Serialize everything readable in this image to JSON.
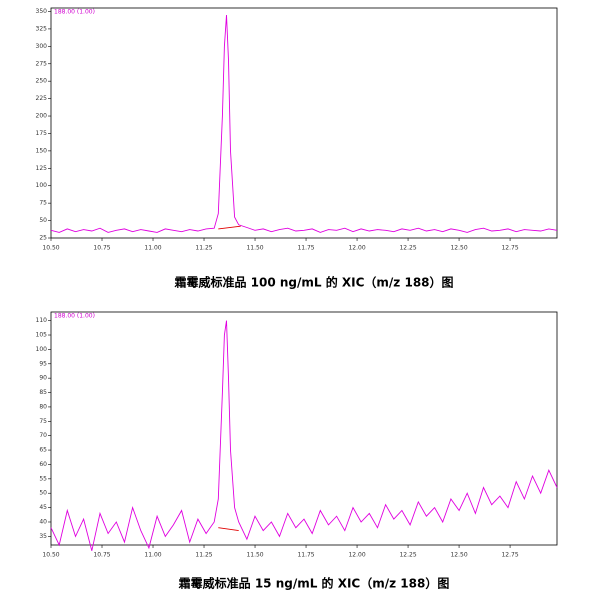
{
  "chart_data": [
    {
      "type": "line",
      "title": "霜霉威标准品 100 ng/mL 的 XIC（m/z 188）图",
      "annotation": "188.00 (1.00)",
      "xlim": [
        10.5,
        12.98
      ],
      "ylim": [
        25,
        355
      ],
      "xticks": [
        {
          "value": 10.5,
          "label": "10.50"
        },
        10.75,
        {
          "value": 11.0,
          "label": "11.00"
        },
        11.25,
        {
          "value": 11.5,
          "label": "11.50"
        },
        11.75,
        {
          "value": 12.0,
          "label": "12.00"
        },
        12.25,
        {
          "value": 12.5,
          "label": "12.50"
        },
        12.75
      ],
      "yticks": [
        25,
        50,
        75,
        100,
        125,
        150,
        175,
        200,
        225,
        250,
        275,
        300,
        325,
        350
      ],
      "series": [
        {
          "color": "#e000e0",
          "x": [
            10.5,
            10.54,
            10.58,
            10.62,
            10.66,
            10.7,
            10.74,
            10.78,
            10.82,
            10.86,
            10.9,
            10.94,
            10.98,
            11.02,
            11.06,
            11.1,
            11.14,
            11.18,
            11.22,
            11.26,
            11.3,
            11.32,
            11.34,
            11.35,
            11.36,
            11.37,
            11.38,
            11.4,
            11.42,
            11.46,
            11.5,
            11.54,
            11.58,
            11.62,
            11.66,
            11.7,
            11.74,
            11.78,
            11.82,
            11.86,
            11.9,
            11.94,
            11.98,
            12.02,
            12.06,
            12.1,
            12.14,
            12.18,
            12.22,
            12.26,
            12.3,
            12.34,
            12.38,
            12.42,
            12.46,
            12.5,
            12.54,
            12.58,
            12.62,
            12.66,
            12.7,
            12.74,
            12.78,
            12.82,
            12.86,
            12.9,
            12.94,
            12.98
          ],
          "values": [
            36,
            33,
            38,
            34,
            37,
            35,
            39,
            33,
            36,
            38,
            34,
            37,
            35,
            33,
            38,
            36,
            34,
            37,
            35,
            38,
            39,
            60,
            200,
            300,
            345,
            280,
            150,
            55,
            44,
            40,
            36,
            38,
            34,
            37,
            39,
            35,
            36,
            38,
            33,
            37,
            36,
            39,
            34,
            38,
            35,
            37,
            36,
            34,
            38,
            36,
            39,
            35,
            37,
            34,
            38,
            36,
            33,
            37,
            39,
            35,
            36,
            38,
            34,
            37,
            36,
            35,
            38,
            36
          ]
        },
        {
          "color": "#e00000",
          "x": [
            11.32,
            11.43
          ],
          "values": [
            38,
            42
          ]
        }
      ]
    },
    {
      "type": "line",
      "title": "霜霉威标准品 15 ng/mL 的 XIC（m/z 188）图",
      "annotation": "188.00 (1.00)",
      "xlim": [
        10.5,
        12.98
      ],
      "ylim": [
        32,
        113
      ],
      "xticks": [
        {
          "value": 10.5,
          "label": "10.50"
        },
        10.75,
        {
          "value": 11.0,
          "label": "11.00"
        },
        11.25,
        {
          "value": 11.5,
          "label": "11.50"
        },
        11.75,
        {
          "value": 12.0,
          "label": "12.00"
        },
        12.25,
        {
          "value": 12.5,
          "label": "12.50"
        },
        12.75
      ],
      "yticks": [
        35,
        40,
        45,
        50,
        55,
        60,
        65,
        70,
        75,
        80,
        85,
        90,
        95,
        100,
        105,
        110
      ],
      "series": [
        {
          "color": "#e000e0",
          "x": [
            10.5,
            10.54,
            10.58,
            10.62,
            10.66,
            10.7,
            10.74,
            10.78,
            10.82,
            10.86,
            10.9,
            10.94,
            10.98,
            11.02,
            11.06,
            11.1,
            11.14,
            11.18,
            11.22,
            11.26,
            11.3,
            11.32,
            11.34,
            11.35,
            11.36,
            11.37,
            11.38,
            11.4,
            11.42,
            11.46,
            11.5,
            11.54,
            11.58,
            11.62,
            11.66,
            11.7,
            11.74,
            11.78,
            11.82,
            11.86,
            11.9,
            11.94,
            11.98,
            12.02,
            12.06,
            12.1,
            12.14,
            12.18,
            12.22,
            12.26,
            12.3,
            12.34,
            12.38,
            12.42,
            12.46,
            12.5,
            12.54,
            12.58,
            12.62,
            12.66,
            12.7,
            12.74,
            12.78,
            12.82,
            12.86,
            12.9,
            12.94,
            12.98
          ],
          "values": [
            38,
            32,
            44,
            35,
            41,
            30,
            43,
            36,
            40,
            33,
            45,
            37,
            31,
            42,
            35,
            39,
            44,
            33,
            41,
            36,
            40,
            48,
            85,
            105,
            110,
            90,
            65,
            45,
            40,
            34,
            42,
            37,
            40,
            35,
            43,
            38,
            41,
            36,
            44,
            39,
            42,
            37,
            45,
            40,
            43,
            38,
            46,
            41,
            44,
            39,
            47,
            42,
            45,
            40,
            48,
            44,
            50,
            43,
            52,
            46,
            49,
            45,
            54,
            48,
            56,
            50,
            58,
            52
          ]
        },
        {
          "color": "#e00000",
          "x": [
            11.32,
            11.42
          ],
          "values": [
            38,
            37
          ]
        }
      ]
    }
  ]
}
